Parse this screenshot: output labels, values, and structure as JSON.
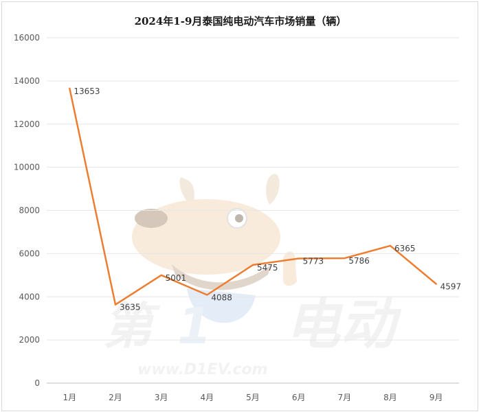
{
  "chart_data": {
    "type": "line",
    "title": "2024年1-9月泰国纯电动汽车市场销量（辆）",
    "categories": [
      "1月",
      "2月",
      "3月",
      "4月",
      "5月",
      "6月",
      "7月",
      "8月",
      "9月"
    ],
    "series": [
      {
        "values": [
          13653,
          3635,
          5001,
          4088,
          5475,
          5773,
          5786,
          6365,
          4597
        ]
      }
    ],
    "ylim": [
      0,
      16000
    ],
    "yticks": [
      0,
      2000,
      4000,
      6000,
      8000,
      10000,
      12000,
      14000,
      16000
    ],
    "grid": true,
    "data_labels": true,
    "line_color": "#ed7d31",
    "grid_color": "#e6e6e6"
  },
  "watermark": {
    "text_left": "第",
    "text_mid": "1",
    "text_right": "电动",
    "url": "www.D1EV.com"
  }
}
